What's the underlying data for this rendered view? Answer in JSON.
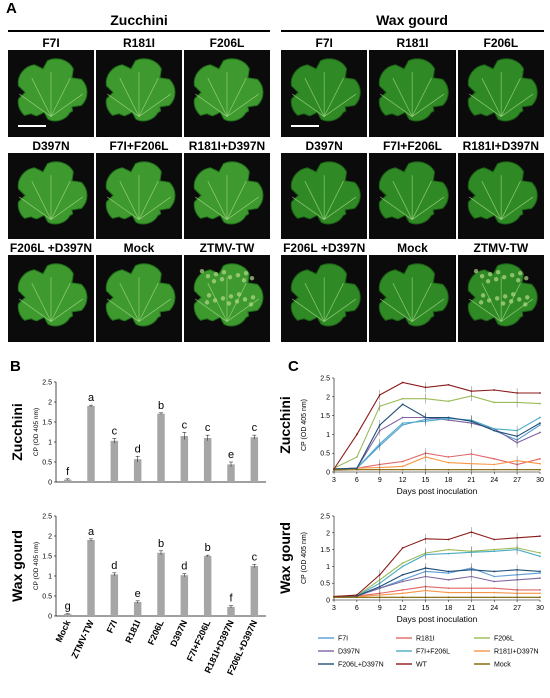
{
  "panel_labels": {
    "a": "A",
    "b": "B",
    "c": "C"
  },
  "groups": {
    "left": "Zucchini",
    "right": "Wax gourd"
  },
  "photo_labels": {
    "zucchini": [
      "F7I",
      "R181I",
      "F206L",
      "D397N",
      "F7I+F206L",
      "R181I+D397N",
      "F206L +D397N",
      "Mock",
      "ZTMV-TW"
    ],
    "wax_gourd": [
      "F7I",
      "R181I",
      "F206L",
      "D397N",
      "F7I+F206L",
      "R181I+D397N",
      "F206L +D397N",
      "Mock",
      "ZTMV-TW"
    ]
  },
  "chart_data": [
    {
      "type": "bar",
      "panel": "B",
      "title": "Zucchini",
      "ylabel": "CP (OD 405 nm)",
      "ylim": [
        0,
        2.5
      ],
      "yticks": [
        "0",
        "0.5",
        "1",
        "1.5",
        "2",
        "2.5"
      ],
      "categories": [
        "Mock",
        "ZTMV-TW",
        "F7I",
        "R181I",
        "F206L",
        "D397N",
        "F7I+F206L",
        "R181I+D397N",
        "F206L+D397N"
      ],
      "values": [
        0.06,
        1.9,
        1.03,
        0.57,
        1.71,
        1.15,
        1.1,
        0.44,
        1.12
      ],
      "errors": [
        0.02,
        0.02,
        0.06,
        0.07,
        0.02,
        0.09,
        0.07,
        0.06,
        0.05
      ],
      "letters": [
        "f",
        "a",
        "c",
        "d",
        "b",
        "c",
        "c",
        "e",
        "c"
      ],
      "color": "#a6a6a6"
    },
    {
      "type": "bar",
      "panel": "B",
      "title": "Wax gourd",
      "ylabel": "CP (OD 405 nm)",
      "ylim": [
        0,
        2.5
      ],
      "yticks": [
        "0",
        "0.5",
        "1",
        "1.5",
        "2",
        "2.5"
      ],
      "categories": [
        "Mock",
        "ZTMV-TW",
        "F7I",
        "R181I",
        "F206L",
        "D397N",
        "F7I+F206L",
        "R181I+D397N",
        "F206L+D397N"
      ],
      "values": [
        0.05,
        1.9,
        1.04,
        0.35,
        1.58,
        1.02,
        1.5,
        0.23,
        1.25
      ],
      "errors": [
        0.01,
        0.03,
        0.04,
        0.03,
        0.05,
        0.04,
        0.02,
        0.03,
        0.04
      ],
      "letters": [
        "g",
        "a",
        "d",
        "e",
        "b",
        "d",
        "b",
        "f",
        "c"
      ],
      "color": "#a6a6a6"
    },
    {
      "type": "line",
      "panel": "C",
      "title": "Zucchini",
      "xlabel": "Days post inoculation",
      "ylabel": "CP (OD 405 nm)",
      "x": [
        3,
        6,
        9,
        12,
        15,
        18,
        21,
        24,
        27,
        30
      ],
      "ylim": [
        0,
        2.5
      ],
      "yticks": [
        "0",
        "0.5",
        "1",
        "1.5",
        "2",
        "2.5"
      ],
      "series": [
        {
          "name": "F7I",
          "color": "#5b9bd5",
          "values": [
            0.08,
            0.1,
            0.7,
            1.25,
            1.4,
            1.45,
            1.35,
            1.1,
            0.85,
            1.25
          ]
        },
        {
          "name": "R181I",
          "color": "#e06666",
          "values": [
            0.08,
            0.1,
            0.2,
            0.28,
            0.5,
            0.4,
            0.48,
            0.35,
            0.2,
            0.35
          ]
        },
        {
          "name": "F206L",
          "color": "#9bbb59",
          "values": [
            0.1,
            0.4,
            1.75,
            1.95,
            1.95,
            1.88,
            2.02,
            1.85,
            1.85,
            1.82
          ]
        },
        {
          "name": "D397N",
          "color": "#8064a2",
          "values": [
            0.08,
            0.1,
            1.1,
            1.45,
            1.45,
            1.38,
            1.3,
            1.15,
            0.78,
            1.05
          ]
        },
        {
          "name": "F7I+F206L",
          "color": "#4bacc6",
          "values": [
            0.08,
            0.1,
            0.75,
            1.3,
            1.35,
            1.42,
            1.38,
            1.15,
            1.1,
            1.45
          ]
        },
        {
          "name": "R181I+D397N",
          "color": "#f79646",
          "values": [
            0.08,
            0.1,
            0.12,
            0.15,
            0.4,
            0.25,
            0.22,
            0.2,
            0.3,
            0.22
          ]
        },
        {
          "name": "F206L+D397N",
          "color": "#1f4e79",
          "values": [
            0.08,
            0.1,
            1.25,
            1.8,
            1.45,
            1.45,
            1.35,
            1.1,
            0.95,
            1.3
          ]
        },
        {
          "name": "WT",
          "color": "#8b1a1a",
          "values": [
            0.08,
            1.0,
            2.05,
            2.38,
            2.25,
            2.32,
            2.15,
            2.18,
            2.1,
            2.1
          ]
        },
        {
          "name": "Mock",
          "color": "#7f6000",
          "values": [
            0.05,
            0.06,
            0.06,
            0.06,
            0.06,
            0.06,
            0.06,
            0.06,
            0.06,
            0.06
          ]
        }
      ]
    },
    {
      "type": "line",
      "panel": "C",
      "title": "Wax gourd",
      "xlabel": "Days post inoculation",
      "ylabel": "CP (OD 405 nm)",
      "x": [
        3,
        6,
        9,
        12,
        15,
        18,
        21,
        24,
        27,
        30
      ],
      "ylim": [
        0,
        2.5
      ],
      "yticks": [
        "0",
        "0.5",
        "1",
        "1.5",
        "2",
        "2.5"
      ],
      "series": [
        {
          "name": "F7I",
          "color": "#5b9bd5",
          "values": [
            0.1,
            0.12,
            0.35,
            0.6,
            0.85,
            0.8,
            0.95,
            0.7,
            0.75,
            0.8
          ]
        },
        {
          "name": "R181I",
          "color": "#e06666",
          "values": [
            0.1,
            0.12,
            0.2,
            0.3,
            0.4,
            0.35,
            0.35,
            0.35,
            0.3,
            0.3
          ]
        },
        {
          "name": "F206L",
          "color": "#9bbb59",
          "values": [
            0.1,
            0.12,
            0.6,
            1.1,
            1.4,
            1.5,
            1.45,
            1.5,
            1.55,
            1.4
          ]
        },
        {
          "name": "D397N",
          "color": "#8064a2",
          "values": [
            0.1,
            0.12,
            0.35,
            0.55,
            0.7,
            0.6,
            0.7,
            0.55,
            0.6,
            0.65
          ]
        },
        {
          "name": "F7I+F206L",
          "color": "#4bacc6",
          "values": [
            0.1,
            0.12,
            0.5,
            1.0,
            1.35,
            1.38,
            1.42,
            1.45,
            1.5,
            1.3
          ]
        },
        {
          "name": "R181I+D397N",
          "color": "#f79646",
          "values": [
            0.1,
            0.1,
            0.15,
            0.2,
            0.28,
            0.22,
            0.22,
            0.22,
            0.2,
            0.2
          ]
        },
        {
          "name": "F206L+D397N",
          "color": "#1f4e79",
          "values": [
            0.1,
            0.12,
            0.4,
            0.75,
            0.95,
            0.85,
            0.9,
            0.85,
            0.9,
            0.85
          ]
        },
        {
          "name": "WT",
          "color": "#8b1a1a",
          "values": [
            0.1,
            0.15,
            0.75,
            1.55,
            1.82,
            1.8,
            2.02,
            1.8,
            1.85,
            1.9
          ]
        },
        {
          "name": "Mock",
          "color": "#7f6000",
          "values": [
            0.08,
            0.08,
            0.08,
            0.08,
            0.08,
            0.08,
            0.08,
            0.08,
            0.08,
            0.08
          ]
        }
      ]
    }
  ]
}
